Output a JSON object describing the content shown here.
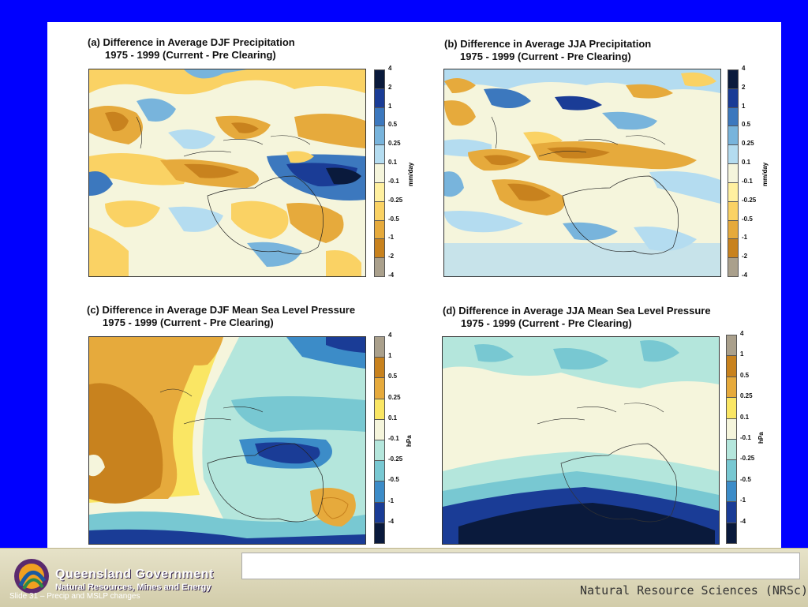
{
  "panels": {
    "a": {
      "title_line1": "(a) Difference in Average DJF Precipitation",
      "title_line2": "1975 - 1999 (Current - Pre Clearing)"
    },
    "b": {
      "title_line1": "(b) Difference in Average JJA Precipitation",
      "title_line2": "1975 - 1999 (Current - Pre Clearing)"
    },
    "c": {
      "title_line1": "(c) Difference in Average DJF Mean Sea Level Pressure",
      "title_line2": "1975 - 1999 (Current - Pre Clearing)"
    },
    "d": {
      "title_line1": "(d) Difference in Average JJA Mean Sea Level Pressure",
      "title_line2": "1975 - 1999 (Current - Pre Clearing)"
    }
  },
  "precip_scale": {
    "unit": "mm/day",
    "ticks": [
      "4",
      "2",
      "1",
      "0.5",
      "0.25",
      "0.1",
      "-0.1",
      "-0.25",
      "-0.5",
      "-1",
      "-2",
      "-4"
    ],
    "colors": [
      "#0a1a3c",
      "#1a3c96",
      "#3c78be",
      "#78b4dc",
      "#b4dcf0",
      "#f5f5dc",
      "#fff0a0",
      "#fad264",
      "#e6aa3c",
      "#c8821e",
      "#aaa08c"
    ]
  },
  "mslp_scale": {
    "unit": "hPa",
    "ticks": [
      "4",
      "1",
      "0.5",
      "0.25",
      "0.1",
      "-0.1",
      "-0.25",
      "-0.5",
      "-1",
      "-4"
    ],
    "colors": [
      "#aaa08c",
      "#c8821e",
      "#e6aa3c",
      "#fae664",
      "#f5f5dc",
      "#b4e6dc",
      "#78c8d2",
      "#3c8cc8",
      "#1a3c96",
      "#0a1a3c"
    ]
  },
  "footer": {
    "gov_name": "Queensland Government",
    "dept": "Natural Resources, Mines and Energy",
    "slide_label": "Slide 31 – Precip and MSLP changes",
    "nrsc": "Natural Resource Sciences (NRSc)"
  }
}
